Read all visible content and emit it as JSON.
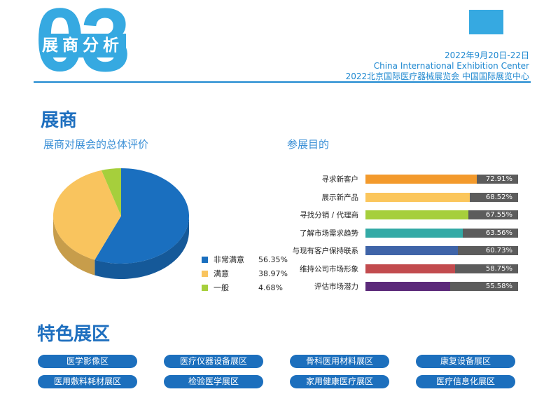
{
  "header": {
    "number": "03",
    "section_title": "展商分析",
    "date": "2022年9月20日-22日",
    "venue_en": "China International Exhibition Center",
    "event_cn": "2022北京国际医疗器械展览会  中国国际展览中心"
  },
  "exhibitors": {
    "heading": "展商",
    "overall_title": "展商对展会的总体评价",
    "purpose_title": "参展目的"
  },
  "chart_data": [
    {
      "type": "pie",
      "title": "展商对展会的总体评价",
      "categories": [
        "非常满意",
        "满意",
        "一般"
      ],
      "values": [
        56.35,
        38.97,
        4.68
      ],
      "value_labels": [
        "56.35%",
        "38.97%",
        "4.68%"
      ],
      "colors": [
        "#1a6fbf",
        "#f9c45e",
        "#a6cf3c"
      ],
      "legend_position": "right"
    },
    {
      "type": "bar",
      "orientation": "horizontal",
      "title": "参展目的",
      "categories": [
        "寻求新客户",
        "展示新产品",
        "寻找分销 / 代理商",
        "了解市场需求趋势",
        "与现有客户保持联系",
        "维持公司市场形象",
        "评估市场潜力"
      ],
      "values": [
        72.91,
        68.52,
        67.55,
        63.56,
        60.73,
        58.75,
        55.58
      ],
      "value_labels": [
        "72.91%",
        "68.52%",
        "67.55%",
        "63.56%",
        "60.73%",
        "58.75%",
        "55.58%"
      ],
      "colors": [
        "#f39a2c",
        "#fbc65c",
        "#a6cf3c",
        "#33aaa6",
        "#3f64a8",
        "#c24b4e",
        "#5b2a7a"
      ],
      "track_color": "#5c5c5c",
      "xlim": [
        0,
        100
      ]
    }
  ],
  "featured": {
    "heading": "特色展区",
    "zones": [
      "医学影像区",
      "医疗仪器设备展区",
      "骨科医用材料展区",
      "康复设备展区",
      "医用敷料耗材展区",
      "检验医学展区",
      "家用健康医疗展区",
      "医疗信息化展区"
    ]
  },
  "colors": {
    "accent": "#36a9e1",
    "heading_blue": "#1e6fbf",
    "pill_blue": "#1c6fbd"
  }
}
